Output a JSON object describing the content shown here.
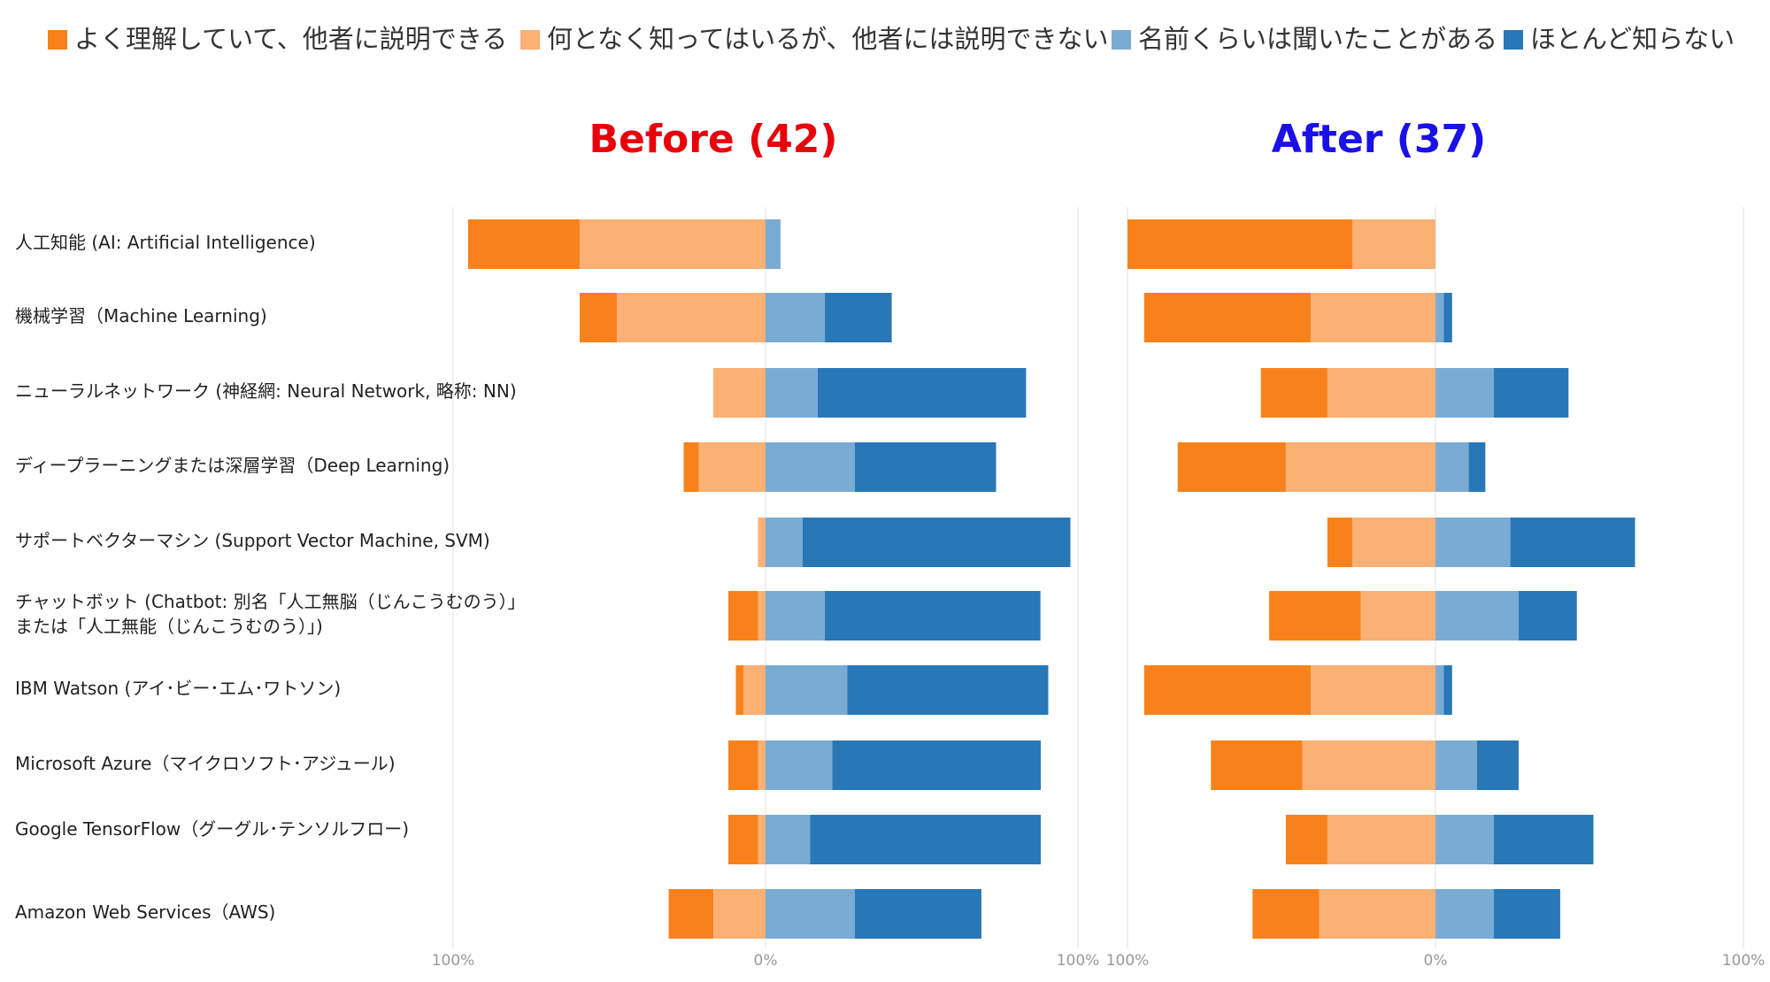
{
  "chart_data": [
    {
      "type": "diverging-bar",
      "title": "Before (42)",
      "title_color": "#e8000b",
      "categories": [
        "人工知能 (AI: Artificial Intelligence)",
        "機械学習（Machine Learning)",
        "ニューラルネットワーク (神経網: Neural Network, 略称: NN)",
        "ディープラーニングまたは深層学習（Deep Learning)",
        "サポートベクターマシン (Support Vector Machine, SVM)",
        "チャットボット (Chatbot: 別名「人工無脳（じんこうむのう）」\nまたは「人工無能（じんこうむのう）」)",
        "IBM Watson (アイ･ビー･エム･ワトソン)",
        "Microsoft Azure（マイクロソフト･アジュール)",
        "Google TensorFlow（グーグル･テンソルフロー)",
        "Amazon Web Services（AWS)"
      ],
      "series": [
        {
          "name": "よく理解していて、他者に説明できる",
          "color": "#f7821b",
          "values": [
            -35.7,
            -11.9,
            0,
            -4.8,
            0,
            -9.5,
            -2.4,
            -9.5,
            -9.5,
            -14.3
          ]
        },
        {
          "name": "何となく知ってはいるが、他者には説明できない",
          "color": "#fbb074",
          "values": [
            -59.5,
            -47.6,
            -16.7,
            -21.4,
            -2.4,
            -2.4,
            -7.1,
            -2.4,
            -2.4,
            -16.7
          ]
        },
        {
          "name": "名前くらいは聞いたことがある",
          "color": "#7aabd3",
          "values": [
            4.8,
            19.0,
            16.7,
            28.6,
            11.9,
            19.0,
            26.2,
            21.4,
            14.3,
            28.6
          ]
        },
        {
          "name": "ほとんど知らない",
          "color": "#2878b8",
          "values": [
            0,
            21.4,
            66.7,
            45.2,
            85.7,
            69.0,
            64.3,
            66.7,
            73.8,
            40.5
          ]
        }
      ],
      "xlim": [
        -100,
        100
      ],
      "xticks": [
        {
          "value": -100,
          "label": "100%"
        },
        {
          "value": 0,
          "label": "0%"
        },
        {
          "value": 100,
          "label": "100%"
        }
      ]
    },
    {
      "type": "diverging-bar",
      "title": "After (37)",
      "title_color": "#1a10e8",
      "series": [
        {
          "color": "#f7821b",
          "values": [
            -73.0,
            -54.1,
            -21.6,
            -35.1,
            -8.1,
            -29.7,
            -54.1,
            -29.7,
            -13.5,
            -21.6
          ]
        },
        {
          "color": "#fbb074",
          "values": [
            -27.0,
            -40.5,
            -35.1,
            -48.6,
            -27.0,
            -24.3,
            -40.5,
            -43.2,
            -35.1,
            -37.8
          ]
        },
        {
          "color": "#7aabd3",
          "values": [
            0,
            2.7,
            18.9,
            10.8,
            24.3,
            27.0,
            2.7,
            13.5,
            18.9,
            18.9
          ]
        },
        {
          "color": "#2878b8",
          "values": [
            0,
            2.7,
            24.3,
            5.4,
            40.5,
            18.9,
            2.7,
            13.5,
            32.4,
            21.6
          ]
        }
      ],
      "xlim": [
        -100,
        100
      ],
      "xticks": [
        {
          "value": -100,
          "label": "100%"
        },
        {
          "value": 0,
          "label": "0%"
        },
        {
          "value": 100,
          "label": "100%"
        }
      ]
    }
  ]
}
